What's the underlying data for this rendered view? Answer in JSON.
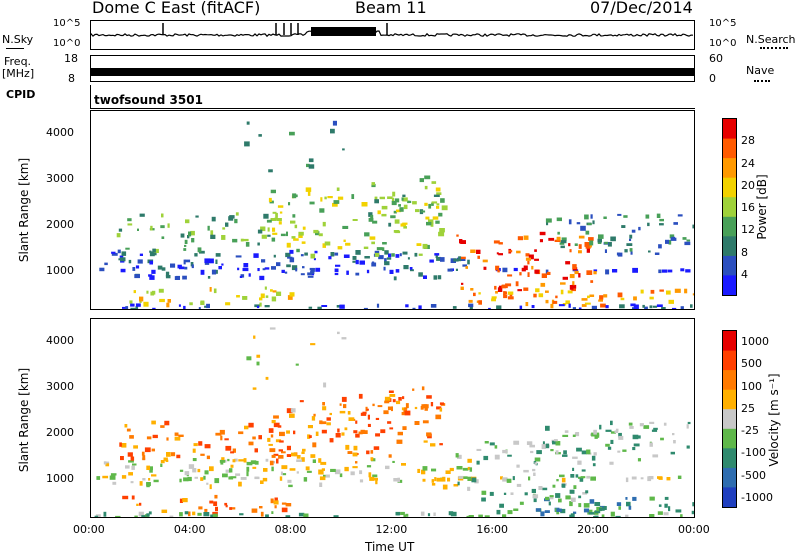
{
  "header": {
    "station": "Dome C East (fitACF)",
    "beam": "Beam 11",
    "date": "07/Dec/2014"
  },
  "strip_labels": {
    "nsky": "N.Sky",
    "nsearch": "N.Search",
    "freq": "Freq.",
    "freq_unit": "[MHz]",
    "nave": "Nave",
    "cpid": "CPID",
    "program": "twofsound 3501",
    "nsky_ticks": [
      "10^5",
      "10^0"
    ],
    "nsearch_ticks": [
      "10^5",
      "10^0"
    ],
    "freq_ticks": [
      "18",
      "8"
    ],
    "nave_ticks": [
      "60",
      "0"
    ]
  },
  "chart_data": [
    {
      "type": "heatmap",
      "name": "power",
      "ylabel": "Slant Range [km]",
      "y_ticks": [
        "4000",
        "3000",
        "2000",
        "1000"
      ],
      "y_tick_values": [
        4000,
        3000,
        2000,
        1000
      ],
      "ylim": [
        200,
        4500
      ],
      "x_ticks": [
        "00:00",
        "04:00",
        "08:00",
        "12:00",
        "16:00",
        "20:00",
        "00:00"
      ],
      "x_tick_values": [
        0,
        4,
        8,
        12,
        16,
        20,
        24
      ],
      "xlim": [
        0,
        24
      ],
      "colorbar": {
        "label": "Power [dB]",
        "ticks": [
          "28",
          "24",
          "20",
          "16",
          "12",
          "8",
          "4"
        ],
        "colors": [
          "#1a1aff",
          "#2b4fbf",
          "#2e7a6a",
          "#48a058",
          "#9fd23a",
          "#f2d200",
          "#ff9900",
          "#ff5a00",
          "#e60000"
        ]
      }
    },
    {
      "type": "heatmap",
      "name": "velocity",
      "xlabel": "Time UT",
      "ylabel": "Slant Range [km]",
      "y_ticks": [
        "4000",
        "3000",
        "2000",
        "1000"
      ],
      "y_tick_values": [
        4000,
        3000,
        2000,
        1000
      ],
      "ylim": [
        200,
        4500
      ],
      "x_ticks": [
        "00:00",
        "04:00",
        "08:00",
        "12:00",
        "16:00",
        "20:00",
        "00:00"
      ],
      "x_tick_values": [
        0,
        4,
        8,
        12,
        16,
        20,
        24
      ],
      "xlim": [
        0,
        24
      ],
      "colorbar": {
        "label": "Velocity [m s⁻¹]",
        "ticks": [
          "1000",
          "500",
          "100",
          "25",
          "-25",
          "-100",
          "-500",
          "-1000"
        ],
        "colors": [
          "#1f3fbf",
          "#2e6db0",
          "#2f8a6e",
          "#5fb84a",
          "#c8c8c8",
          "#ffb000",
          "#ff7a00",
          "#ff4000",
          "#e60000"
        ]
      }
    }
  ],
  "colors": {
    "power_colors": [
      "#1a1aff",
      "#2b4fbf",
      "#2e7a6a",
      "#48a058",
      "#9fd23a",
      "#f2d200",
      "#ff9900",
      "#ff5a00",
      "#e60000"
    ],
    "velocity_colors": [
      "#1f3fbf",
      "#2e6db0",
      "#2f8a6e",
      "#5fb84a",
      "#c8c8c8",
      "#ffb000",
      "#ff7a00",
      "#ff4000",
      "#e60000"
    ]
  }
}
